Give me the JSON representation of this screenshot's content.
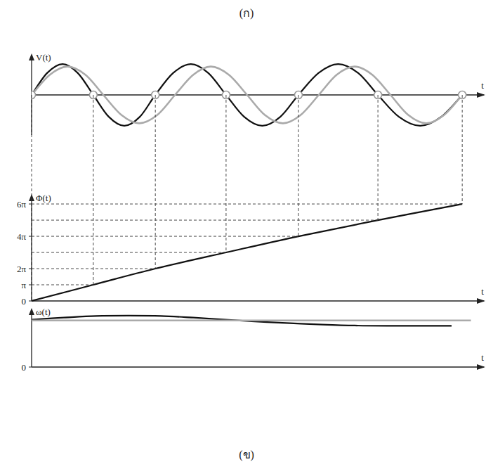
{
  "labels": {
    "top": "(ก)",
    "bottom": "(ข)"
  },
  "chart_data": [
    {
      "type": "line",
      "y_label": "V(t)",
      "x_label": "t",
      "xlim": [
        0,
        14
      ],
      "ylim": [
        -1.3,
        1.3
      ],
      "tick_labels": false,
      "grid": false,
      "series": [
        {
          "type": "line",
          "color": "#111111",
          "line_style": "solid",
          "x": [
            0,
            0.48,
            0.96,
            1.43,
            1.91,
            2.39,
            2.87,
            3.35,
            3.83,
            4.38,
            4.93,
            5.47,
            6.02,
            6.58,
            7.14,
            7.7,
            8.26,
            8.88,
            9.49,
            10.11,
            10.72,
            11.37,
            12.03,
            12.68,
            13.33
          ],
          "values": [
            0,
            0.71,
            1,
            0.71,
            0,
            -0.71,
            -1,
            -0.71,
            0,
            0.71,
            1,
            0.71,
            0,
            -0.71,
            -1,
            -0.71,
            0,
            0.71,
            1,
            0.71,
            0,
            -0.71,
            -1,
            -0.71,
            0
          ]
        },
        {
          "type": "line",
          "color": "#aaaaaa",
          "line_style": "solid",
          "x": [
            0,
            0.56,
            1.11,
            1.67,
            2.22,
            2.78,
            3.33,
            3.89,
            4.44,
            5.0,
            5.55,
            6.11,
            6.67,
            7.22,
            7.78,
            8.33,
            8.89,
            9.44,
            10.0,
            10.55,
            11.11,
            11.66,
            12.22,
            12.77,
            13.33
          ],
          "values": [
            0,
            0.65,
            0.92,
            0.65,
            0,
            -0.65,
            -0.92,
            -0.65,
            0,
            0.65,
            0.92,
            0.65,
            0,
            -0.65,
            -0.92,
            -0.65,
            0,
            0.65,
            0.92,
            0.65,
            0,
            -0.65,
            -0.92,
            -0.65,
            0
          ]
        },
        {
          "type": "scatter",
          "color": "#999999",
          "marker": "circle",
          "x": [
            0,
            1.91,
            3.83,
            6.02,
            8.26,
            10.72,
            13.33
          ],
          "values": [
            0,
            0,
            0,
            0,
            0,
            0,
            0
          ]
        }
      ]
    },
    {
      "type": "line",
      "y_label": "Φ(t)",
      "x_label": "t",
      "xlim": [
        0,
        14
      ],
      "ylim": [
        0,
        20.5
      ],
      "tick_labels": "y",
      "grid": false,
      "yticks": [
        0,
        {
          "value": 3.1416,
          "label": "π"
        },
        {
          "value": 6.2832,
          "label": "2π"
        },
        {
          "value": 12.5664,
          "label": "4π"
        },
        {
          "value": 18.8496,
          "label": "6π"
        }
      ],
      "series": [
        {
          "type": "line",
          "color": "#111111",
          "line_style": "solid",
          "x": [
            0,
            1.91,
            3.83,
            6.02,
            8.26,
            10.72,
            13.33
          ],
          "values": [
            0,
            3.1416,
            6.2832,
            9.4248,
            12.5664,
            15.708,
            18.8496
          ]
        }
      ]
    },
    {
      "type": "line",
      "y_label": "ω(t)",
      "x_label": "t",
      "xlim": [
        0,
        14
      ],
      "ylim": [
        0,
        1.75
      ],
      "tick_labels": "y",
      "grid": false,
      "yticks": [
        0
      ],
      "series": [
        {
          "type": "line",
          "color": "#111111",
          "line_style": "solid",
          "x": [
            0,
            1,
            2,
            3,
            4,
            5,
            6,
            7,
            8,
            9,
            10,
            11,
            12,
            13
          ],
          "values": [
            1.44,
            1.5,
            1.55,
            1.56,
            1.55,
            1.5,
            1.44,
            1.38,
            1.33,
            1.29,
            1.26,
            1.25,
            1.25,
            1.25
          ]
        },
        {
          "type": "line",
          "color": "#aaaaaa",
          "line_style": "solid",
          "x": [
            0,
            13.6
          ],
          "values": [
            1.414,
            1.414
          ]
        }
      ]
    }
  ]
}
